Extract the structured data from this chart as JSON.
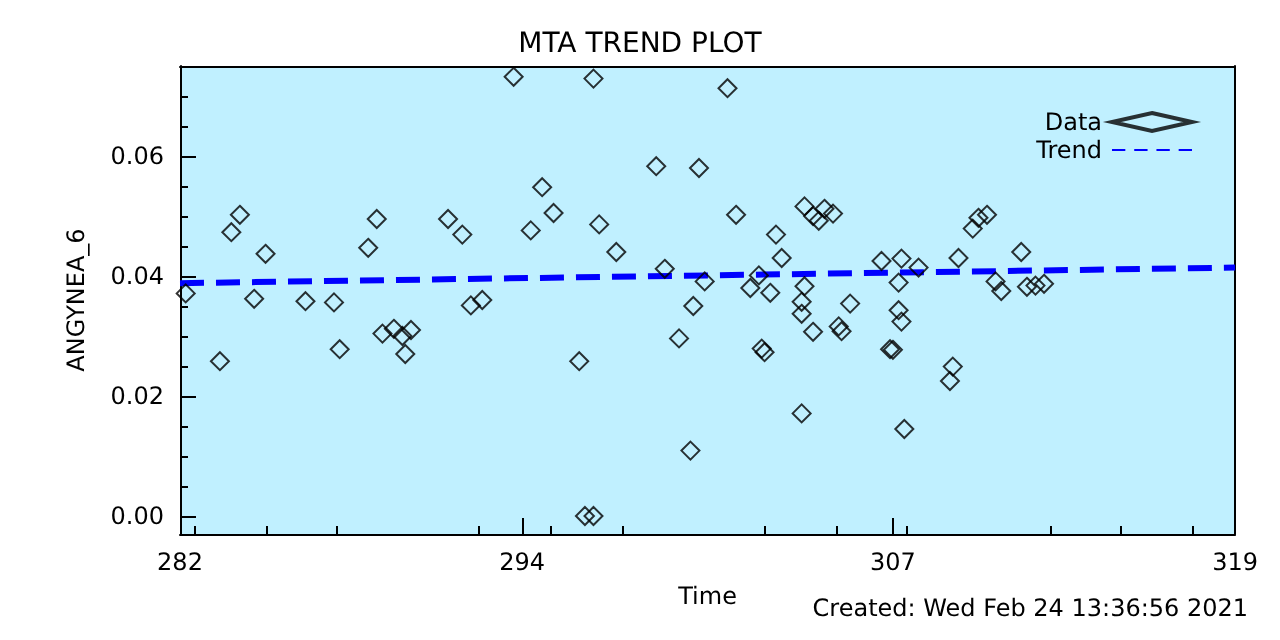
{
  "chart_data": {
    "type": "scatter",
    "title": "MTA TREND PLOT",
    "xlabel": "Time",
    "ylabel": "ANGYNEA_6",
    "annotations": [
      "Created: Wed Feb 24 13:36:56 2021"
    ],
    "xlim": [
      282,
      319
    ],
    "xticks": [
      282,
      294,
      307,
      319
    ],
    "ylim": [
      -0.003,
      0.075
    ],
    "yticks": [
      {
        "value": 0,
        "label": "0.00"
      },
      {
        "value": 0.02,
        "label": "0.02"
      },
      {
        "value": 0.04,
        "label": "0.04"
      },
      {
        "value": 0.06,
        "label": "0.06"
      }
    ],
    "grid": false,
    "legend": "top right",
    "series": [
      {
        "name": "Data",
        "marker": "diamond",
        "color": "#000000",
        "x": [
          282.2,
          283.4,
          283.8,
          284.1,
          284.6,
          285.0,
          286.4,
          287.4,
          287.6,
          288.6,
          288.9,
          289.1,
          289.5,
          289.8,
          290.1,
          289.9,
          291.4,
          291.9,
          292.2,
          292.6,
          293.7,
          294.3,
          294.7,
          295.1,
          296.5,
          296.0,
          296.2,
          296.5,
          296.7,
          297.3,
          298.7,
          299.0,
          299.5,
          299.9,
          300.0,
          300.2,
          300.4,
          301.2,
          301.5,
          302.0,
          302.3,
          302.7,
          302.4,
          302.5,
          302.9,
          303.1,
          303.8,
          303.9,
          303.8,
          303.8,
          304.2,
          303.9,
          304.2,
          304.4,
          304.6,
          304.9,
          305.5,
          305.1,
          305.2,
          306.6,
          306.9,
          307.3,
          307.2,
          307.2,
          307.3,
          307.0,
          307.4,
          307.9,
          309.1,
          309.0,
          309.3,
          309.8,
          310.0,
          310.3,
          310.6,
          310.8,
          311.5,
          311.7,
          312.0,
          312.3
        ],
        "values": [
          0.0371,
          0.0258,
          0.0473,
          0.0502,
          0.0362,
          0.0437,
          0.0358,
          0.0356,
          0.0278,
          0.0447,
          0.0495,
          0.0304,
          0.0312,
          0.03,
          0.031,
          0.027,
          0.0495,
          0.0469,
          0.0351,
          0.036,
          0.0732,
          0.0476,
          0.0548,
          0.0505,
          0.0729,
          0.0258,
          0.0,
          0.0,
          0.0486,
          0.044,
          0.0583,
          0.0412,
          0.0296,
          0.0109,
          0.035,
          0.058,
          0.0391,
          0.0713,
          0.0502,
          0.038,
          0.0401,
          0.0372,
          0.0279,
          0.0273,
          0.0469,
          0.043,
          0.0171,
          0.0383,
          0.0357,
          0.0337,
          0.0307,
          0.0516,
          0.05,
          0.0492,
          0.0512,
          0.0504,
          0.0354,
          0.0316,
          0.0308,
          0.0425,
          0.0278,
          0.0429,
          0.0389,
          0.0343,
          0.0324,
          0.0277,
          0.0145,
          0.0414,
          0.0249,
          0.0225,
          0.043,
          0.0479,
          0.0497,
          0.0502,
          0.0391,
          0.0375,
          0.044,
          0.0382,
          0.0384,
          0.0387
        ]
      },
      {
        "name": "Trend",
        "type": "line",
        "color": "#0000ff",
        "line_style": "dashed",
        "marker": "none",
        "x": [
          282,
          319
        ],
        "values": [
          0.0388,
          0.0414
        ]
      }
    ]
  }
}
